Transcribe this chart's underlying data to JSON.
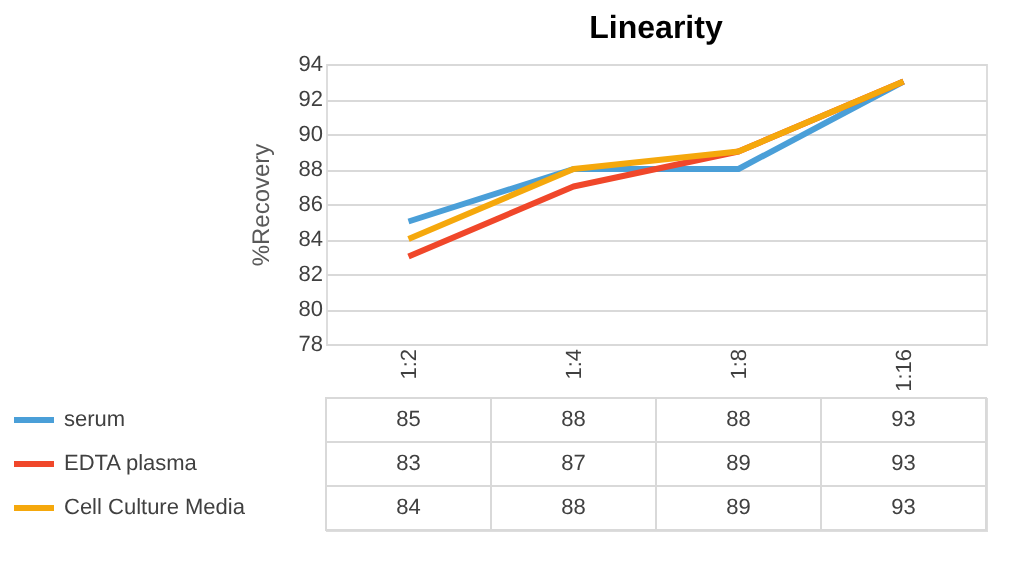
{
  "chart_data": {
    "type": "line",
    "title": "Linearity",
    "ylabel": "%Recovery",
    "categories": [
      "1:2",
      "1:4",
      "1:8",
      "1:16"
    ],
    "series": [
      {
        "name": "serum",
        "color": "#4a9fd8",
        "values": [
          85,
          88,
          88,
          93
        ]
      },
      {
        "name": "EDTA plasma",
        "color": "#f0472a",
        "values": [
          83,
          87,
          89,
          93
        ]
      },
      {
        "name": "Cell Culture Media",
        "color": "#f5a80c",
        "values": [
          84,
          88,
          89,
          93
        ]
      }
    ],
    "ylim": [
      78,
      94
    ],
    "yticks": [
      78,
      80,
      82,
      84,
      86,
      88,
      90,
      92,
      94
    ],
    "grid": "y",
    "legend": "bottom",
    "data_labels": true,
    "marker": "none",
    "line_style": "solid"
  }
}
